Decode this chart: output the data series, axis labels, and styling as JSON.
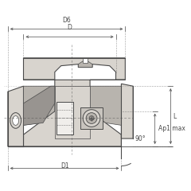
{
  "bg_color": "#ffffff",
  "line_color": "#4a4a4a",
  "dim_color": "#4a4a4a",
  "fill_light": "#d8d4ce",
  "fill_mid": "#b8b4ae",
  "fill_dark": "#989490",
  "fill_white": "#f0eeeb",
  "insert_gray": "#c8c4be",
  "labels": {
    "D6": "D6",
    "D": "D",
    "D1": "D1",
    "L": "L",
    "Ap1max": "Ap1 max",
    "angle": "90°"
  }
}
